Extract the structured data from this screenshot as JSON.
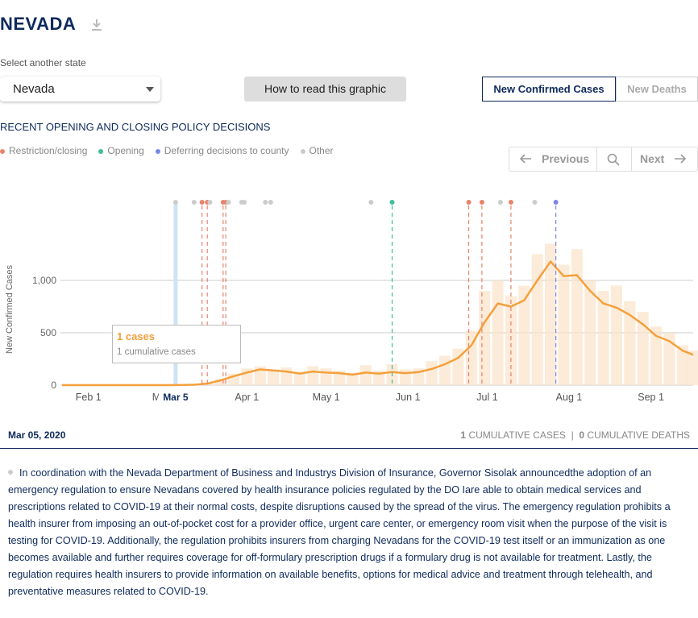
{
  "header": {
    "title": "NEVADA"
  },
  "state_select": {
    "label": "Select another state",
    "value": "Nevada"
  },
  "help_button": "How to read this graphic",
  "tabs": [
    "New Confirmed Cases",
    "New Deaths"
  ],
  "policy_section": {
    "title": "RECENT OPENING AND CLOSING POLICY DECISIONS",
    "legend": [
      {
        "name": "Restriction/closing",
        "color": "#e8836b"
      },
      {
        "name": "Opening",
        "color": "#3dbf9a"
      },
      {
        "name": "Deferring decisions to county",
        "color": "#7b86e8"
      },
      {
        "name": "Other",
        "color": "#cccccc"
      }
    ],
    "previous": "Previous",
    "next": "Next"
  },
  "chart_data": {
    "type": "line",
    "ylabel": "New Confirmed Cases",
    "x": [
      "Jan 22",
      "Jan 27",
      "Feb 1",
      "Feb 6",
      "Feb 11",
      "Feb 16",
      "Feb 21",
      "Feb 26",
      "Mar 2",
      "Mar 7",
      "Mar 12",
      "Mar 17",
      "Mar 22",
      "Mar 27",
      "Apr 1",
      "Apr 6",
      "Apr 11",
      "Apr 16",
      "Apr 21",
      "Apr 26",
      "May 1",
      "May 6",
      "May 11",
      "May 16",
      "May 21",
      "May 26",
      "May 31",
      "Jun 5",
      "Jun 10",
      "Jun 15",
      "Jun 20",
      "Jun 25",
      "Jun 30",
      "Jul 5",
      "Jul 10",
      "Jul 15",
      "Jul 20",
      "Jul 25",
      "Jul 30",
      "Aug 4",
      "Aug 9",
      "Aug 14",
      "Aug 19",
      "Aug 24",
      "Aug 29",
      "Sep 3",
      "Sep 8",
      "Sep 13",
      "Sep 17"
    ],
    "series": [
      {
        "type": "bar",
        "color": "#fbe3c8",
        "values": [
          0,
          0,
          0,
          0,
          0,
          0,
          0,
          0,
          0,
          2,
          8,
          25,
          60,
          110,
          160,
          180,
          150,
          170,
          130,
          180,
          160,
          140,
          120,
          190,
          140,
          200,
          150,
          160,
          230,
          280,
          350,
          520,
          900,
          1000,
          850,
          950,
          1250,
          1350,
          1150,
          1300,
          1000,
          900,
          950,
          800,
          700,
          560,
          500,
          380,
          330
        ]
      },
      {
        "type": "line",
        "color": "#f4a03c",
        "values": [
          0,
          0,
          0,
          0,
          0,
          0,
          0,
          0,
          0,
          1,
          4,
          15,
          45,
          85,
          120,
          150,
          140,
          130,
          110,
          130,
          120,
          115,
          100,
          120,
          110,
          125,
          115,
          125,
          155,
          200,
          260,
          380,
          600,
          780,
          750,
          810,
          1000,
          1180,
          1040,
          1050,
          900,
          780,
          740,
          670,
          580,
          470,
          420,
          330,
          290
        ]
      }
    ],
    "xlim": [
      "Jan 22",
      "Sep 17"
    ],
    "xticks": [
      "Feb 1",
      "Mar 1",
      "Apr 1",
      "May 1",
      "Jun 1",
      "Jul 1",
      "Aug 1",
      "Sep 1"
    ],
    "selected": "Mar 5",
    "ylim": [
      0,
      1700
    ],
    "yticks": [
      0,
      500,
      {
        "value": 1000,
        "label": "1,000"
      }
    ],
    "grid": true,
    "policies": [
      {
        "date": "Mar 5",
        "legend": 3
      },
      {
        "date": "Mar 12",
        "legend": 3
      },
      {
        "date": "Mar 15",
        "legend": 0
      },
      {
        "date": "Mar 17",
        "legend": 0
      },
      {
        "date": "Mar 18",
        "legend": 3
      },
      {
        "date": "Mar 23",
        "legend": 0
      },
      {
        "date": "Mar 24",
        "legend": 0
      },
      {
        "date": "Mar 25",
        "legend": 3
      },
      {
        "date": "Mar 30",
        "legend": 3
      },
      {
        "date": "Mar 31",
        "legend": 3
      },
      {
        "date": "Apr 8",
        "legend": 3
      },
      {
        "date": "Apr 10",
        "legend": 3
      },
      {
        "date": "May 18",
        "legend": 3
      },
      {
        "date": "May 26",
        "legend": 1
      },
      {
        "date": "Jun 24",
        "legend": 0
      },
      {
        "date": "Jun 29",
        "legend": 0
      },
      {
        "date": "Jul 6",
        "legend": 3
      },
      {
        "date": "Jul 10",
        "legend": 0
      },
      {
        "date": "Jul 19",
        "legend": 3
      },
      {
        "date": "Jul 27",
        "legend": 2
      }
    ]
  },
  "tooltip": {
    "title": "1 cases",
    "subtitle": "1 cumulative cases"
  },
  "date_bar": {
    "date": "Mar 05, 2020",
    "cumulative_cases": 1,
    "cases_label": "CUMULATIVE CASES",
    "separator": "|",
    "cumulative_deaths": 0,
    "deaths_label": "CUMULATIVE DEATHS"
  },
  "policy_text": "In coordination with the Nevada Department of Business and Industrys Division of Insurance, Governor Sisolak announcedthe adoption of an emergency regulation to ensure Nevadans covered by health insurance policies regulated by the DO Iare able to obtain medical services and prescriptions related to COVID-19 at their normal costs, despite disruptions caused by the spread of the virus. The emergency regulation prohibits a health insurer from imposing an out-of-pocket cost for a provider office, urgent care center, or emergency room visit when the purpose of the visit is testing for COVID-19. Additionally, the regulation prohibits insurers from charging Nevadans for the COVID-19 test itself or an immunization as one becomes available and further requires coverage for off-formulary prescription drugs if a formulary drug is not available for treatment. Lastly, the regulation requires health insurers to provide information on available benefits, options for medical advice and treatment through telehealth, and preventative measures related to COVID-19."
}
